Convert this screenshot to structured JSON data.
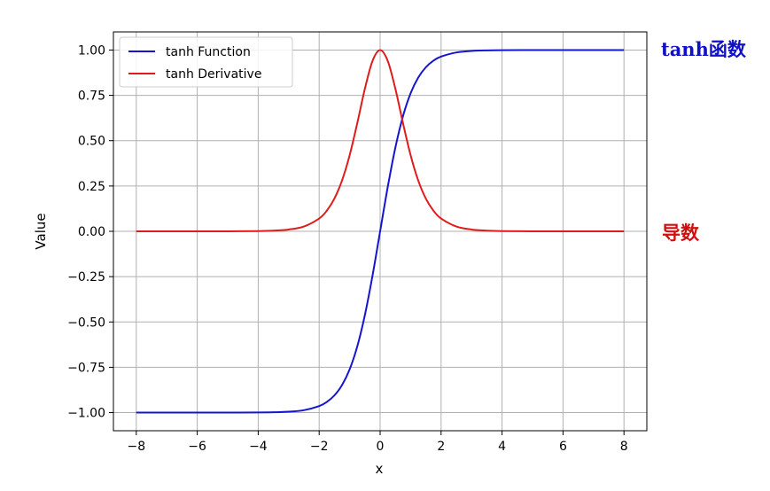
{
  "chart_data": {
    "type": "line",
    "title": "",
    "xlabel": "x",
    "ylabel": "Value",
    "xlim": [
      -8.75,
      8.75
    ],
    "ylim": [
      -1.1,
      1.1
    ],
    "xticks": [
      -8,
      -6,
      -4,
      -2,
      0,
      2,
      4,
      6,
      8
    ],
    "yticks": [
      -1.0,
      -0.75,
      -0.5,
      -0.25,
      0.0,
      0.25,
      0.5,
      0.75,
      1.0
    ],
    "grid": true,
    "legend_position": "upper-left",
    "series": [
      {
        "name": "tanh Function",
        "color": "#1515d0",
        "x": [
          -8,
          -7,
          -6,
          -5,
          -4,
          -3.5,
          -3,
          -2.5,
          -2,
          -1.75,
          -1.5,
          -1.25,
          -1,
          -0.75,
          -0.5,
          -0.25,
          0,
          0.25,
          0.5,
          0.75,
          1,
          1.25,
          1.5,
          1.75,
          2,
          2.5,
          3,
          3.5,
          4,
          5,
          6,
          7,
          8
        ],
        "y": [
          -1.0,
          -1.0,
          -1.0,
          -0.9999,
          -0.9993,
          -0.9982,
          -0.9951,
          -0.9866,
          -0.964,
          -0.9414,
          -0.9051,
          -0.8483,
          -0.7616,
          -0.6351,
          -0.4621,
          -0.2449,
          0.0,
          0.2449,
          0.4621,
          0.6351,
          0.7616,
          0.8483,
          0.9051,
          0.9414,
          0.964,
          0.9866,
          0.9951,
          0.9982,
          0.9993,
          0.9999,
          1.0,
          1.0,
          1.0
        ]
      },
      {
        "name": "tanh Derivative",
        "color": "#e01b1b",
        "x": [
          -8,
          -7,
          -6,
          -5,
          -4,
          -3.5,
          -3,
          -2.5,
          -2,
          -1.75,
          -1.5,
          -1.25,
          -1,
          -0.75,
          -0.5,
          -0.25,
          0,
          0.25,
          0.5,
          0.75,
          1,
          1.25,
          1.5,
          1.75,
          2,
          2.5,
          3,
          3.5,
          4,
          5,
          6,
          7,
          8
        ],
        "y": [
          0.0,
          0.0,
          0.0,
          0.0002,
          0.0013,
          0.0036,
          0.0099,
          0.0266,
          0.0707,
          0.1138,
          0.1807,
          0.2804,
          0.42,
          0.5966,
          0.7864,
          0.94,
          1.0,
          0.94,
          0.7864,
          0.5966,
          0.42,
          0.2804,
          0.1807,
          0.1138,
          0.0707,
          0.0266,
          0.0099,
          0.0036,
          0.0013,
          0.0002,
          0.0,
          0.0,
          0.0
        ]
      }
    ],
    "annotations": [
      {
        "text": "tanh函数",
        "color": "#1010c8"
      },
      {
        "text": "导数",
        "color": "#d01010"
      }
    ]
  }
}
